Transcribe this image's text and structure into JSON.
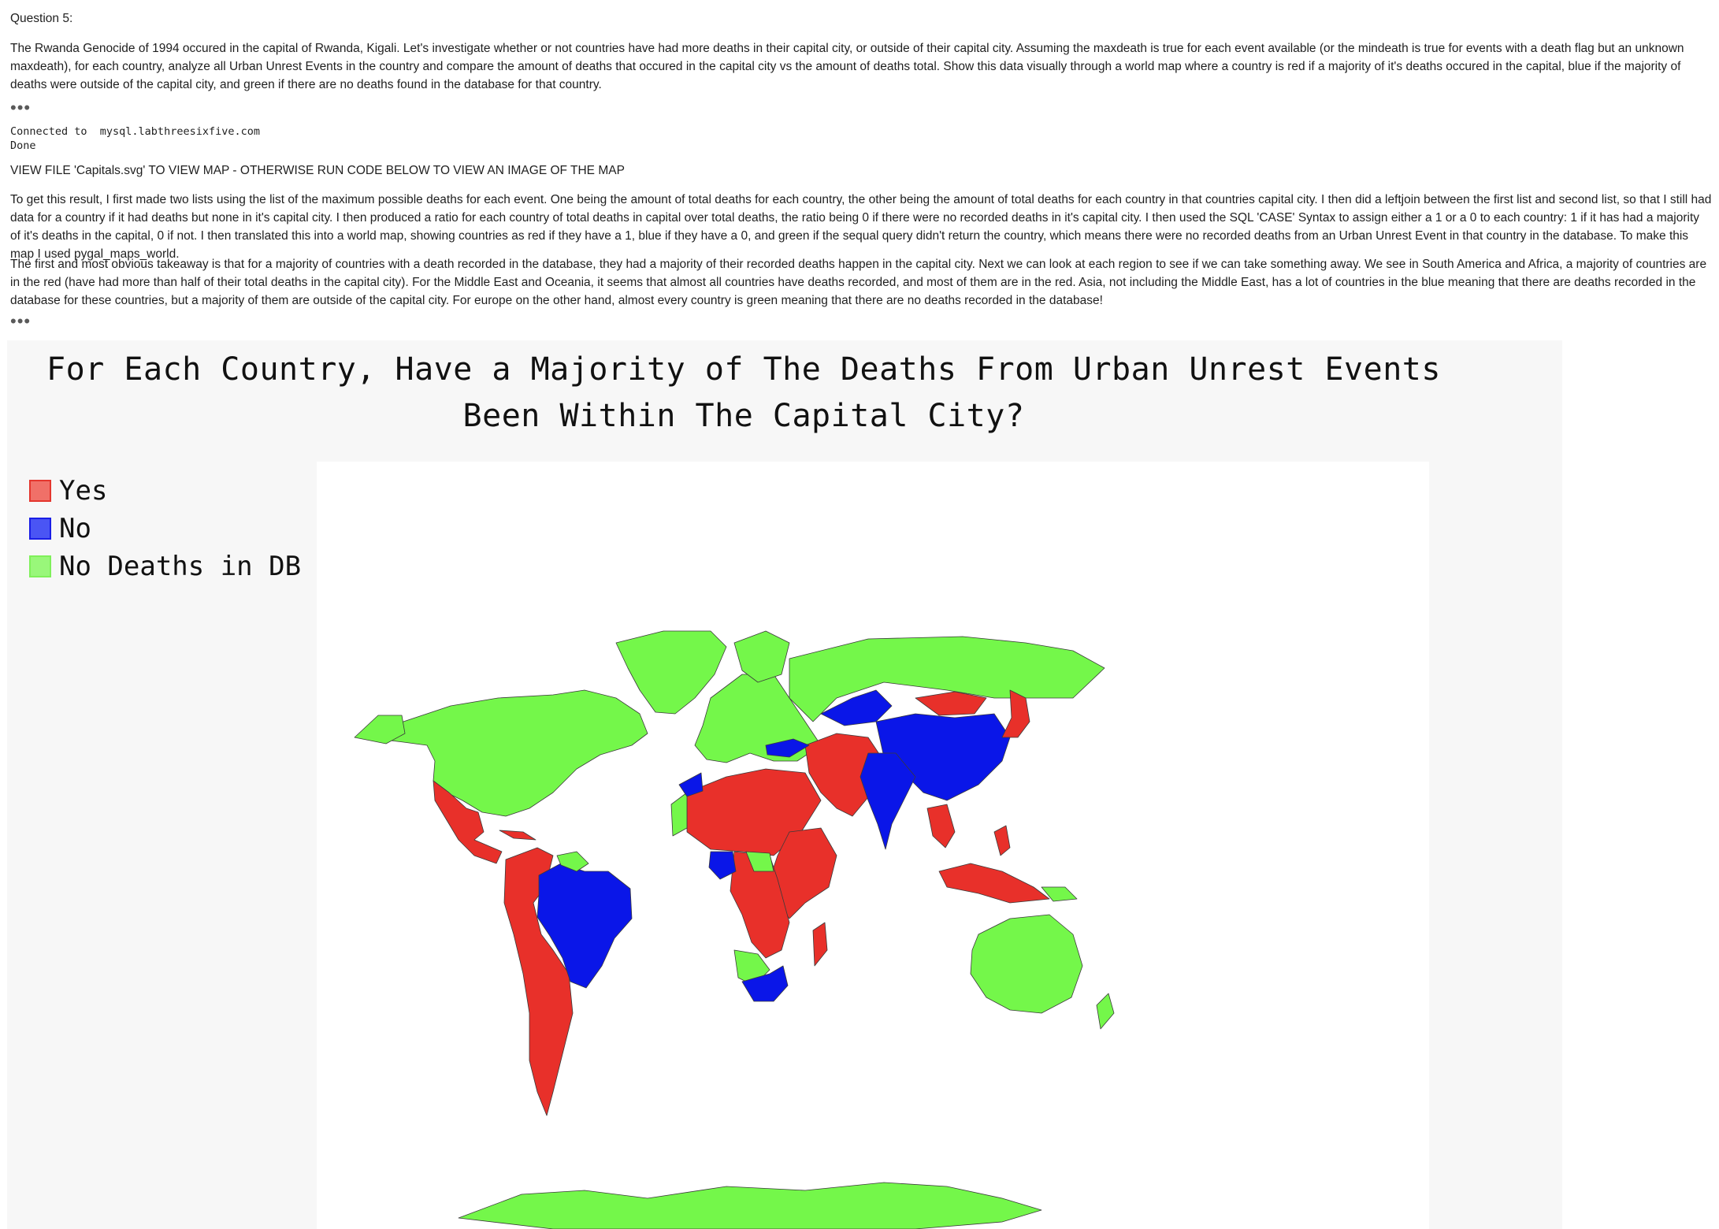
{
  "question_label": "Question 5:",
  "intro_text": "The Rwanda Genocide of 1994 occured in the capital of Rwanda, Kigali. Let's investigate whether or not countries have had more deaths in their capital city, or outside of their capital city. Assuming the maxdeath is true for each event available (or the mindeath is true for events with a death flag but an unknown maxdeath), for each country, analyze all Urban Unrest Events in the country and compare the amount of deaths that occured in the capital city vs the amount of deaths total. Show this data visually through a world map where a country is red if a majority of it's deaths occured in the capital, blue if the majority of deaths were outside of the capital city, and green if there are no deaths found in the database for that country.",
  "collapsed_marker": "•••",
  "output": {
    "connected": "Connected to  mysql.labthreesixfive.com",
    "done": "Done"
  },
  "view_file_text": "VIEW FILE 'Capitals.svg' TO VIEW MAP - OTHERWISE RUN CODE BELOW TO VIEW AN IMAGE OF THE MAP",
  "method_text": "To get this result, I first made two lists using the list of the maximum possible deaths for each event. One being the amount of total deaths for each country, the other being the amount of total deaths for each country in that countries capital city. I then did a leftjoin between the first list and second list, so that I still had data for a country if it had deaths but none in it's capital city. I then produced a ratio for each country of total deaths in capital over total deaths, the ratio being 0 if there were no recorded deaths in it's capital city. I then used the SQL 'CASE' Syntax to assign either a 1 or a 0 to each country: 1 if it has had a majority of it's deaths in the capital, 0 if not. I then translated this into a world map, showing countries as red if they have a 1, blue if they have a 0, and green if the sequal query didn't return the country, which means there were no recorded deaths from an Urban Unrest Event in that country in the database. To make this map I used pygal_maps_world.",
  "takeaway_text": "The first and most obvious takeaway is that for a majority of countries with a death recorded in the database, they had a majority of their recorded deaths happen in the capital city. Next we can look at each region to see if we can take something away. We see in South America and Africa, a majority of countries are in the red (have had more than half of their total deaths in the capital city). For the Middle East and Oceania, it seems that almost all countries have deaths recorded, and most of them are in the red. Asia, not including the Middle East, has a lot of countries in the blue meaning that there are deaths recorded in the database for these countries, but a majority of them are outside of the capital city. For europe on the other hand, almost every country is green meaning that there are no deaths recorded in the database!",
  "chart": {
    "title_line1": "For Each Country, Have a Majority of The Deaths From Urban Unrest Events",
    "title_line2": "Been Within The Capital City?",
    "legend": [
      {
        "label": "Yes",
        "fill": "#f07068",
        "border": "#e4362e"
      },
      {
        "label": "No",
        "fill": "#4a55f4",
        "border": "#1a1ee6"
      },
      {
        "label": "No Deaths in DB",
        "fill": "#99f77a",
        "border": "#7ff05a"
      }
    ],
    "colors": {
      "yes": "#e8302a",
      "no": "#0a16e8",
      "none": "#74f74a",
      "border": "#3a3a3a"
    }
  }
}
